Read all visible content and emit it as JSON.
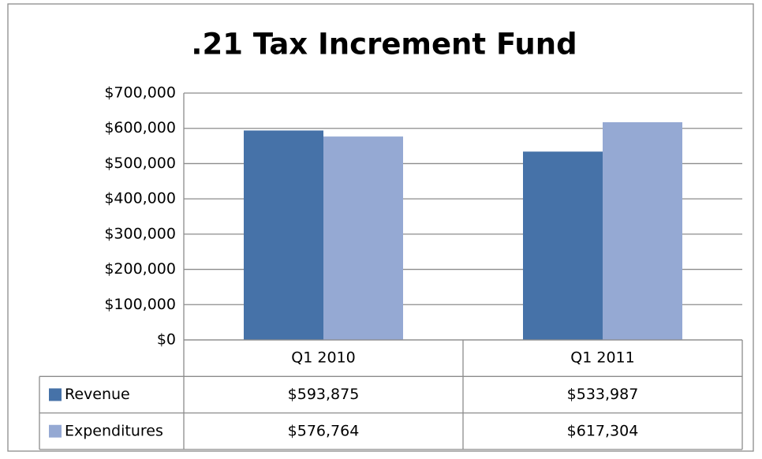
{
  "chart_data": {
    "type": "bar",
    "title": ".21 Tax Increment Fund",
    "categories": [
      "Q1 2010",
      "Q1 2011"
    ],
    "series": [
      {
        "name": "Revenue",
        "color": "#4672a8",
        "values": [
          593875,
          533987
        ],
        "value_labels": [
          "$593,875",
          "$533,987"
        ]
      },
      {
        "name": "Expenditures",
        "color": "#95a9d3",
        "values": [
          576764,
          617304
        ],
        "value_labels": [
          "$576,764",
          "$617,304"
        ]
      }
    ],
    "ylim": [
      0,
      700000
    ],
    "yticks": [
      {
        "value": 0,
        "label": "$0"
      },
      {
        "value": 100000,
        "label": "$100,000"
      },
      {
        "value": 200000,
        "label": "$200,000"
      },
      {
        "value": 300000,
        "label": "$300,000"
      },
      {
        "value": 400000,
        "label": "$400,000"
      },
      {
        "value": 500000,
        "label": "$500,000"
      },
      {
        "value": 600000,
        "label": "$600,000"
      },
      {
        "value": 700000,
        "label": "$700,000"
      }
    ],
    "grid": true,
    "legend": "table"
  }
}
